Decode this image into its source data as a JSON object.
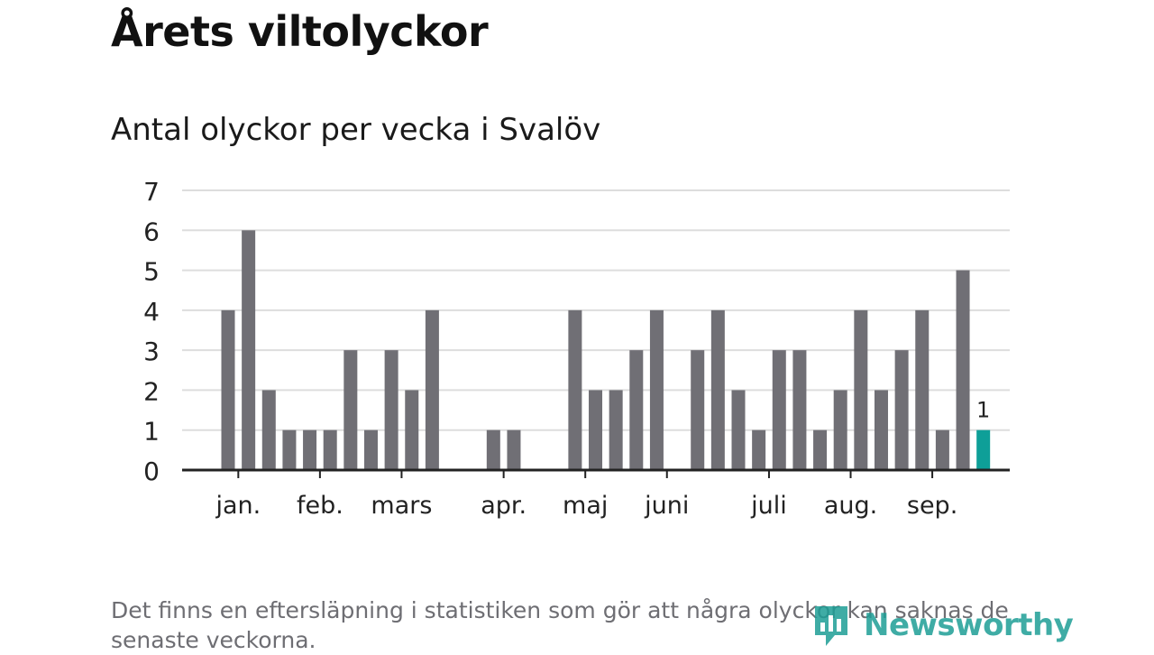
{
  "title": "Årets viltolyckor",
  "subtitle": "Antal olyckor per vecka i Svalöv",
  "footnote": "Det finns en eftersläpning i statistiken som gör att några olyckor kan saknas de senaste veckorna.",
  "logo": {
    "text": "Newsworthy",
    "icon": "bar-chart-logo-icon"
  },
  "colors": {
    "bar": "#706f75",
    "highlight": "#0e9f98",
    "grid": "#dddddd",
    "axis": "#222222",
    "text": "#222222"
  },
  "chart_data": {
    "type": "bar",
    "title": "Antal olyckor per vecka i Svalöv",
    "xlabel": "",
    "ylabel": "",
    "ylim": [
      0,
      7
    ],
    "yticks": [
      0,
      1,
      2,
      3,
      4,
      5,
      6,
      7
    ],
    "grid": true,
    "weeks": [
      1,
      2,
      3,
      4,
      5,
      6,
      7,
      8,
      9,
      10,
      11,
      12,
      13,
      14,
      15,
      16,
      17,
      18,
      19,
      20,
      21,
      22,
      23,
      24,
      25,
      26,
      27,
      28,
      29,
      30,
      31,
      32,
      33,
      34,
      35,
      36,
      37,
      38
    ],
    "values": [
      4,
      6,
      2,
      1,
      1,
      1,
      3,
      1,
      3,
      2,
      4,
      0,
      0,
      1,
      1,
      0,
      0,
      4,
      2,
      2,
      3,
      4,
      0,
      3,
      4,
      2,
      1,
      3,
      3,
      1,
      2,
      4,
      2,
      3,
      4,
      1,
      5,
      1
    ],
    "highlight_index": 37,
    "highlight_label": "1",
    "month_labels": [
      {
        "label": "jan.",
        "week": 1.5
      },
      {
        "label": "feb.",
        "week": 5.5
      },
      {
        "label": "mars",
        "week": 9.5
      },
      {
        "label": "apr.",
        "week": 14.5
      },
      {
        "label": "maj",
        "week": 18.5
      },
      {
        "label": "juni",
        "week": 22.5
      },
      {
        "label": "juli",
        "week": 27.5
      },
      {
        "label": "aug.",
        "week": 31.5
      },
      {
        "label": "sep.",
        "week": 35.5
      }
    ]
  }
}
